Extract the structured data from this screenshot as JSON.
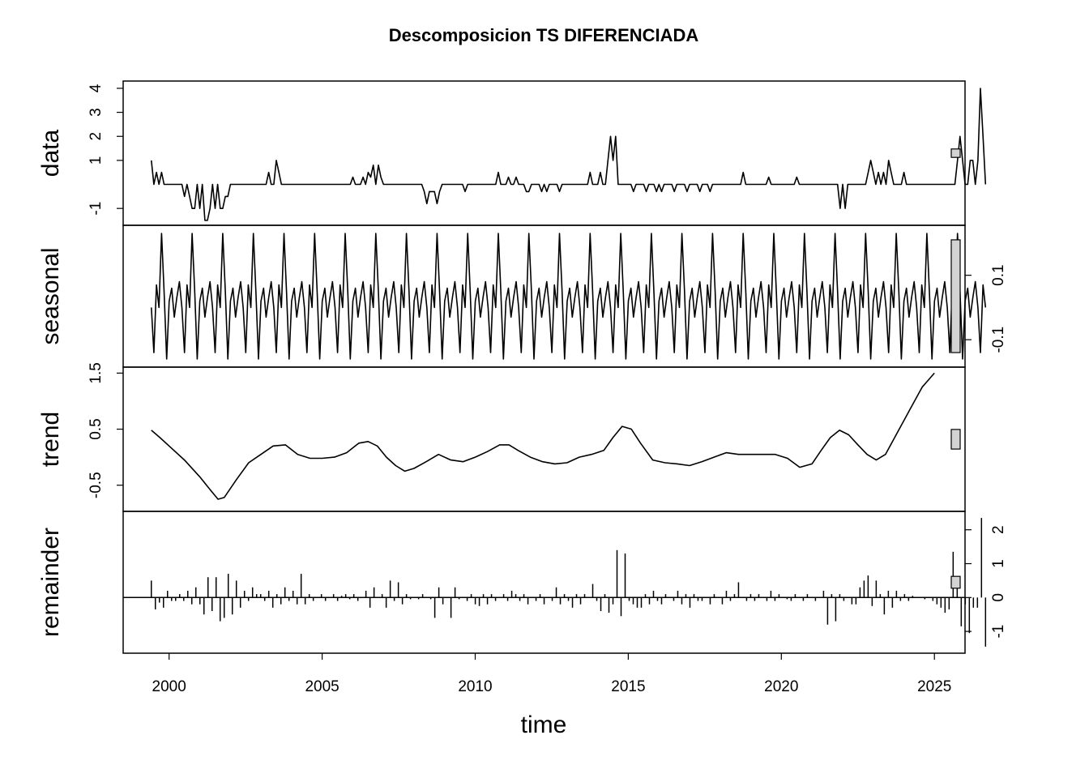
{
  "chart_data": {
    "type": "line",
    "title": "Descomposicion TS DIFERENCIADA",
    "xlabel": "time",
    "xlim": [
      1998.5,
      2026.0
    ],
    "x_ticks": [
      2000,
      2005,
      2010,
      2015,
      2020,
      2025
    ],
    "x_tick_labels": [
      "2000",
      "2005",
      "2010",
      "2015",
      "2020",
      "2025"
    ],
    "start": 1999.42,
    "frequency": 12,
    "panels": [
      {
        "name": "data",
        "ylabel": "data",
        "axis_side": "left",
        "ylim": [
          -1.5,
          4.1
        ],
        "ticks": [
          -1,
          1,
          2,
          3,
          4
        ],
        "tick_labels": [
          "-1",
          "1",
          "2",
          "3",
          "4"
        ],
        "render": "line",
        "values": [
          1,
          0,
          0.5,
          0,
          0.5,
          0,
          0,
          0,
          0,
          0,
          0,
          0,
          0,
          -0.5,
          0,
          -0.5,
          -1,
          -1,
          0,
          -1,
          0,
          -1.5,
          -1.5,
          -1,
          0,
          -1,
          0,
          -1,
          -1,
          -0.5,
          -0.5,
          0,
          0,
          0,
          0,
          0,
          0,
          0,
          0,
          0,
          0,
          0,
          0,
          0,
          0,
          0,
          0.5,
          0,
          0,
          1,
          0.5,
          0,
          0,
          0,
          0,
          0,
          0,
          0,
          0,
          0,
          0,
          0,
          0,
          0,
          0,
          0,
          0,
          0,
          0,
          0,
          0,
          0,
          0,
          0,
          0,
          0,
          0,
          0,
          0,
          0.3,
          0,
          0,
          0,
          0.3,
          0,
          0.5,
          0.3,
          0.8,
          0,
          0.8,
          0.3,
          0,
          0,
          0,
          0,
          0,
          0,
          0,
          0,
          0,
          0,
          0,
          0,
          0,
          0,
          0,
          0,
          -0.3,
          -0.8,
          -0.3,
          -0.3,
          -0.3,
          -0.8,
          -0.3,
          0,
          0,
          0,
          0,
          0,
          0,
          0,
          0,
          0,
          -0.3,
          0,
          0,
          0,
          0,
          0,
          0,
          0,
          0,
          0,
          0,
          0,
          0,
          0.5,
          0,
          0,
          0,
          0.3,
          0,
          0,
          0.3,
          0,
          0,
          0,
          -0.3,
          -0.3,
          0,
          0,
          0,
          0,
          -0.3,
          0,
          -0.3,
          0,
          0,
          0,
          0,
          -0.3,
          0,
          0,
          0,
          0,
          0,
          0,
          0,
          0,
          0,
          0,
          0,
          0.5,
          0,
          0,
          0,
          0.5,
          0,
          0,
          1,
          2,
          1,
          2,
          0,
          0,
          0,
          0,
          0,
          0,
          -0.3,
          0,
          0,
          0,
          0,
          -0.3,
          0,
          0,
          0,
          -0.3,
          0,
          -0.3,
          0,
          0,
          0,
          0,
          -0.3,
          0,
          0,
          0,
          0,
          -0.3,
          0,
          0,
          0,
          0,
          -0.3,
          0,
          0,
          0,
          -0.3,
          0,
          0,
          0,
          0,
          0,
          0,
          0,
          0,
          0,
          0,
          0,
          0,
          0.5,
          0,
          0,
          0,
          0,
          0,
          0,
          0,
          0,
          0,
          0.3,
          0,
          0,
          0,
          0,
          0,
          0,
          0,
          0,
          0,
          0,
          0.3,
          0,
          0,
          0,
          0,
          0,
          0,
          0,
          0,
          0,
          0,
          0,
          0,
          0,
          0,
          0,
          0,
          -1,
          0,
          -1,
          0,
          0,
          0,
          0,
          0,
          0,
          0,
          0,
          0.5,
          1,
          0.5,
          0,
          0.5,
          0,
          0.5,
          0,
          1,
          0.5,
          0,
          0,
          0,
          0,
          0.5,
          0,
          0,
          0,
          0,
          0,
          0,
          0,
          0,
          0,
          0,
          0,
          0,
          0,
          0,
          0,
          0,
          0,
          0,
          0,
          0,
          1,
          2,
          1,
          0,
          0,
          1,
          1,
          0,
          1,
          4,
          2,
          0
        ]
      },
      {
        "name": "seasonal",
        "ylabel": "seasonal",
        "axis_side": "right",
        "ylim": [
          -0.17,
          0.24
        ],
        "ticks": [
          -0.1,
          0.1
        ],
        "tick_labels": [
          "-0.1",
          "0.1"
        ],
        "render": "line",
        "pattern": [
          0.0,
          -0.14,
          0.07,
          0.0,
          0.23,
          0.05,
          -0.16,
          0.02,
          0.06,
          -0.03,
          0.03,
          0.08
        ],
        "note_pattern_start_month": 6
      },
      {
        "name": "trend",
        "ylabel": "trend",
        "axis_side": "left",
        "ylim": [
          -0.88,
          1.52
        ],
        "ticks": [
          -0.5,
          0.5,
          1.5
        ],
        "tick_labels": [
          "-0.5",
          "0.5",
          "1.5"
        ],
        "render": "line",
        "x": [
          1999.42,
          1999.7,
          2000.0,
          2000.5,
          2001.0,
          2001.4,
          2001.6,
          2001.8,
          2002.2,
          2002.6,
          2003.0,
          2003.4,
          2003.8,
          2004.2,
          2004.6,
          2005.0,
          2005.4,
          2005.8,
          2006.2,
          2006.5,
          2006.8,
          2007.1,
          2007.4,
          2007.7,
          2008.0,
          2008.4,
          2008.8,
          2009.2,
          2009.6,
          2010.0,
          2010.4,
          2010.8,
          2011.1,
          2011.4,
          2011.8,
          2012.2,
          2012.6,
          2013.0,
          2013.4,
          2013.8,
          2014.2,
          2014.5,
          2014.8,
          2015.1,
          2015.4,
          2015.8,
          2016.2,
          2016.6,
          2017.0,
          2017.4,
          2017.8,
          2018.2,
          2018.6,
          2019.0,
          2019.4,
          2019.8,
          2020.2,
          2020.6,
          2021.0,
          2021.3,
          2021.6,
          2021.9,
          2022.2,
          2022.5,
          2022.8,
          2023.1,
          2023.4,
          2023.8,
          2024.2,
          2024.6,
          2025.0
        ],
        "values": [
          0.48,
          0.35,
          0.2,
          -0.05,
          -0.35,
          -0.62,
          -0.75,
          -0.72,
          -0.4,
          -0.1,
          0.05,
          0.2,
          0.22,
          0.05,
          -0.02,
          -0.02,
          0.0,
          0.08,
          0.25,
          0.28,
          0.2,
          0.0,
          -0.15,
          -0.25,
          -0.2,
          -0.08,
          0.05,
          -0.05,
          -0.08,
          0.0,
          0.1,
          0.22,
          0.22,
          0.12,
          0.0,
          -0.08,
          -0.12,
          -0.1,
          0.0,
          0.05,
          0.12,
          0.35,
          0.55,
          0.5,
          0.25,
          -0.05,
          -0.1,
          -0.12,
          -0.15,
          -0.08,
          0.0,
          0.08,
          0.05,
          0.05,
          0.05,
          0.05,
          -0.02,
          -0.18,
          -0.12,
          0.12,
          0.35,
          0.48,
          0.4,
          0.22,
          0.05,
          -0.05,
          0.05,
          0.45,
          0.85,
          1.25,
          1.5
        ]
      },
      {
        "name": "remainder",
        "ylabel": "remainder",
        "axis_side": "right",
        "ylim": [
          -1.5,
          2.4
        ],
        "ticks": [
          -1,
          0,
          1,
          2
        ],
        "tick_labels": [
          "-1",
          "0",
          "1",
          "2"
        ],
        "render": "bars",
        "values": [
          0.5,
          -0.35,
          -0.15,
          -0.3,
          0.2,
          -0.1,
          -0.1,
          0.1,
          -0.1,
          0.2,
          -0.2,
          0.3,
          -0.2,
          -0.5,
          0.6,
          -0.4,
          0.6,
          -0.7,
          -0.6,
          0.7,
          -0.5,
          0.5,
          -0.3,
          0.2,
          -0.1,
          0.3,
          0.1,
          0.1,
          -0.1,
          0.2,
          -0.3,
          0.1,
          -0.2,
          0.3,
          -0.1,
          0.2,
          -0.2,
          0.7,
          -0.2,
          0.1,
          -0.1,
          0,
          0.1,
          -0.1,
          0,
          0.1,
          -0.1,
          0.05,
          0.1,
          -0.05,
          0.1,
          -0.1,
          0,
          0.2,
          -0.3,
          0.3,
          0,
          0.1,
          -0.3,
          0.5,
          -0.1,
          0.45,
          -0.2,
          0.1,
          -0.05,
          0,
          -0.05,
          0.1,
          0,
          -0.05,
          -0.6,
          0.3,
          -0.2,
          0,
          -0.6,
          0.3,
          -0.05,
          0,
          -0.1,
          0.1,
          -0.2,
          -0.25,
          0.1,
          -0.2,
          0.1,
          -0.1,
          0,
          0.1,
          -0.1,
          0.2,
          0.1,
          -0.1,
          0.1,
          -0.2,
          0,
          -0.1,
          0.1,
          -0.2,
          0,
          -0.1,
          0.3,
          -0.2,
          0.1,
          -0.1,
          -0.3,
          0.1,
          -0.2,
          0.1,
          0,
          0.4,
          -0.1,
          -0.4,
          0.1,
          -0.45,
          -0.2,
          1.4,
          -0.55,
          1.3,
          -0.1,
          -0.2,
          -0.3,
          -0.3,
          0.1,
          -0.2,
          0.2,
          -0.1,
          -0.2,
          0.1,
          0,
          -0.1,
          0.2,
          -0.2,
          0.1,
          -0.3,
          0.1,
          -0.1,
          -0.1,
          0,
          -0.2,
          0.1,
          0,
          -0.2,
          0.2,
          -0.1,
          0.1,
          0.45,
          0,
          -0.1,
          0.1,
          -0.1,
          0.1,
          0,
          -0.1,
          0.2,
          -0.1,
          0.1,
          0,
          -0.05,
          -0.1,
          0.1,
          0,
          -0.1,
          0.1,
          0,
          -0.1,
          0,
          0.2,
          -0.8,
          0.1,
          -0.7,
          0.1,
          -0.1,
          0,
          -0.2,
          -0.2,
          0.3,
          0.5,
          0.65,
          -0.25,
          0.5,
          0.1,
          -0.5,
          0.2,
          -0.3,
          0.2,
          -0.1,
          0.1,
          -0.1,
          0.05,
          0,
          0,
          -0.05,
          0,
          -0.1,
          -0.2,
          -0.3,
          -0.45,
          -0.35,
          1.35,
          0.4,
          -0.85,
          -0.2,
          -1.05,
          -0.3,
          -0.3,
          2.35,
          -1.45
        ]
      }
    ],
    "scale_bars": "gray rectangles at right margin showing equal data range across panels"
  }
}
